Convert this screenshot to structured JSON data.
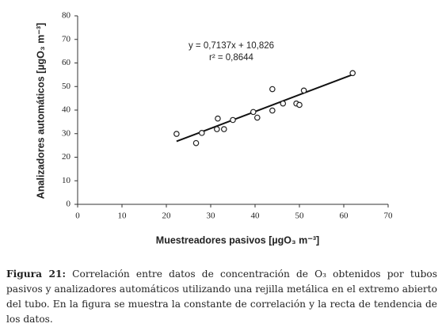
{
  "chart_data": {
    "type": "scatter",
    "xlabel": "Muestreadores pasivos [µgO₃ m⁻³]",
    "ylabel": "Analizadores automáticos [µgO₃ m⁻³]",
    "annotations": [
      "y = 0,7137x + 10,826",
      "r² = 0,8644"
    ],
    "x": [
      22.3,
      26.7,
      28,
      31.4,
      31.6,
      33,
      35,
      39.6,
      40.5,
      43.9,
      43.9,
      46.3,
      49.3,
      50,
      51,
      62
    ],
    "y": [
      29.9,
      26,
      30.3,
      31.9,
      36.4,
      31.9,
      35.8,
      39.2,
      36.8,
      39.8,
      48.9,
      42.8,
      42.8,
      42.2,
      48.3,
      55.7
    ],
    "trendline": {
      "x": [
        22.3,
        62
      ],
      "y": [
        26.74,
        55.08
      ]
    },
    "color": "#222222",
    "xlim": [
      0,
      70
    ],
    "ylim": [
      0,
      80
    ],
    "xticks": [
      0,
      10,
      20,
      30,
      40,
      50,
      60,
      70
    ],
    "yticks": [
      0,
      10,
      20,
      30,
      40,
      50,
      60,
      70,
      80
    ]
  },
  "caption": {
    "label": "Figura 21:",
    "text": "Correlación entre datos de concentración de O₃ obtenidos por tubos pasivos y analizadores automáticos utilizando una rejilla metálica en el extremo abierto del tubo. En la figura se muestra la constante de correlación y la recta de tendencia de los datos."
  }
}
